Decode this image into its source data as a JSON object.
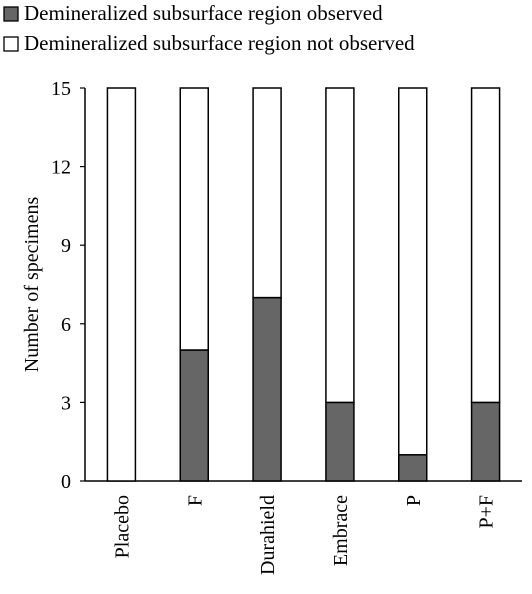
{
  "chart_data": {
    "type": "bar",
    "stacked": true,
    "categories": [
      "Placebo",
      "F",
      "Durahield",
      "Embrace",
      "P",
      "P+F"
    ],
    "series": [
      {
        "name": "Demineralized subsurface region observed",
        "values": [
          0,
          5,
          7,
          3,
          1,
          3
        ],
        "color": "#666666"
      },
      {
        "name": "Demineralized subsurface region not observed",
        "values": [
          15,
          10,
          8,
          12,
          14,
          12
        ],
        "color": "#ffffff"
      }
    ],
    "xlabel": "",
    "ylabel": "Number of specimens",
    "ylim": [
      0,
      15
    ],
    "yticks": [
      0,
      3,
      6,
      9,
      12,
      15
    ],
    "grid": false,
    "legend": "top",
    "category_label_orientation": "vertical"
  }
}
